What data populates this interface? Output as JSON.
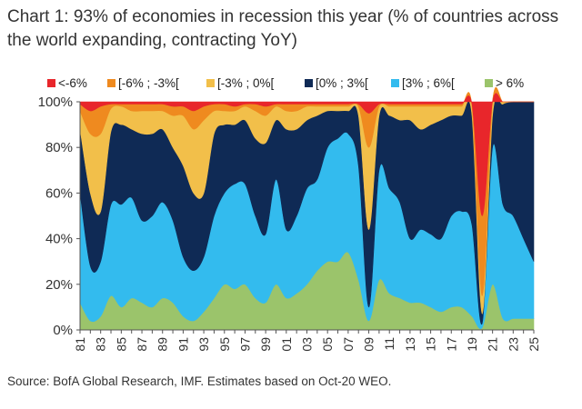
{
  "title": "Chart 1: 93% of economies in recession this year (% of countries across the world expanding, contracting YoY)",
  "source": "Source: BofA Global Research, IMF. Estimates based on Oct-20 WEO.",
  "chart_data": {
    "type": "area",
    "stacked": true,
    "x": [
      "81",
      "82",
      "83",
      "84",
      "85",
      "86",
      "87",
      "88",
      "89",
      "90",
      "91",
      "92",
      "93",
      "94",
      "95",
      "96",
      "97",
      "98",
      "99",
      "00",
      "01",
      "02",
      "03",
      "04",
      "05",
      "06",
      "07",
      "08",
      "09",
      "10",
      "11",
      "12",
      "13",
      "14",
      "15",
      "16",
      "17",
      "18",
      "19",
      "20",
      "21",
      "22",
      "23",
      "24",
      "25"
    ],
    "x_tick_labels": [
      "81",
      "83",
      "85",
      "87",
      "89",
      "91",
      "93",
      "95",
      "97",
      "99",
      "01",
      "03",
      "05",
      "07",
      "09",
      "11",
      "13",
      "15",
      "17",
      "19",
      "21",
      "23",
      "25"
    ],
    "y_tick_labels": [
      "0%",
      "20%",
      "40%",
      "60%",
      "80%",
      "100%"
    ],
    "ylim": [
      0,
      100
    ],
    "legend_position": "top",
    "series": [
      {
        "name": "> 6%",
        "color": "#9bc46b",
        "values": [
          12,
          4,
          6,
          15,
          10,
          14,
          12,
          10,
          14,
          12,
          6,
          4,
          8,
          14,
          20,
          18,
          20,
          14,
          12,
          20,
          14,
          16,
          20,
          26,
          30,
          30,
          34,
          22,
          4,
          22,
          16,
          14,
          12,
          12,
          10,
          8,
          10,
          10,
          6,
          1,
          20,
          5,
          5,
          5,
          5
        ]
      },
      {
        "name": "[3% ; 6%[",
        "color": "#33bbee",
        "values": [
          48,
          24,
          24,
          40,
          45,
          44,
          36,
          40,
          42,
          36,
          26,
          22,
          24,
          36,
          40,
          46,
          44,
          36,
          30,
          46,
          30,
          34,
          42,
          40,
          50,
          54,
          52,
          50,
          6,
          48,
          46,
          42,
          28,
          32,
          32,
          32,
          40,
          42,
          40,
          2,
          60,
          50,
          45,
          35,
          25
        ]
      },
      {
        "name": "[0% ; 3%[",
        "color": "#0f2a55",
        "values": [
          28,
          32,
          22,
          32,
          35,
          30,
          38,
          36,
          32,
          32,
          40,
          34,
          28,
          36,
          30,
          26,
          28,
          34,
          40,
          26,
          44,
          38,
          30,
          28,
          16,
          12,
          10,
          22,
          34,
          24,
          32,
          36,
          52,
          44,
          48,
          52,
          44,
          42,
          48,
          4,
          14,
          44,
          50,
          60,
          70
        ]
      },
      {
        "name": "[-3% ; 0%[",
        "color": "#f2bf4a",
        "values": [
          8,
          26,
          34,
          10,
          8,
          8,
          10,
          10,
          8,
          14,
          22,
          28,
          32,
          10,
          6,
          6,
          6,
          12,
          12,
          6,
          8,
          8,
          6,
          4,
          2,
          2,
          2,
          4,
          36,
          4,
          4,
          6,
          6,
          10,
          8,
          6,
          4,
          4,
          4,
          8,
          6,
          1,
          0,
          0,
          0
        ]
      },
      {
        "name": "[-6% ; -3%[",
        "color": "#ef8a1f",
        "values": [
          3,
          10,
          12,
          2,
          1,
          3,
          3,
          3,
          3,
          4,
          4,
          8,
          6,
          3,
          3,
          2,
          1,
          3,
          4,
          1,
          3,
          3,
          1,
          1,
          1,
          1,
          1,
          1,
          15,
          1,
          1,
          1,
          1,
          1,
          1,
          1,
          1,
          1,
          1,
          35,
          0,
          0,
          0,
          0,
          0
        ]
      },
      {
        "name": "<-6%",
        "color": "#e8262b",
        "values": [
          1,
          4,
          2,
          1,
          1,
          1,
          1,
          1,
          1,
          2,
          2,
          4,
          2,
          1,
          1,
          2,
          1,
          1,
          2,
          1,
          1,
          1,
          1,
          1,
          1,
          1,
          1,
          1,
          5,
          1,
          1,
          1,
          1,
          1,
          1,
          1,
          1,
          1,
          1,
          50,
          0,
          0,
          0,
          0,
          0
        ]
      }
    ]
  }
}
